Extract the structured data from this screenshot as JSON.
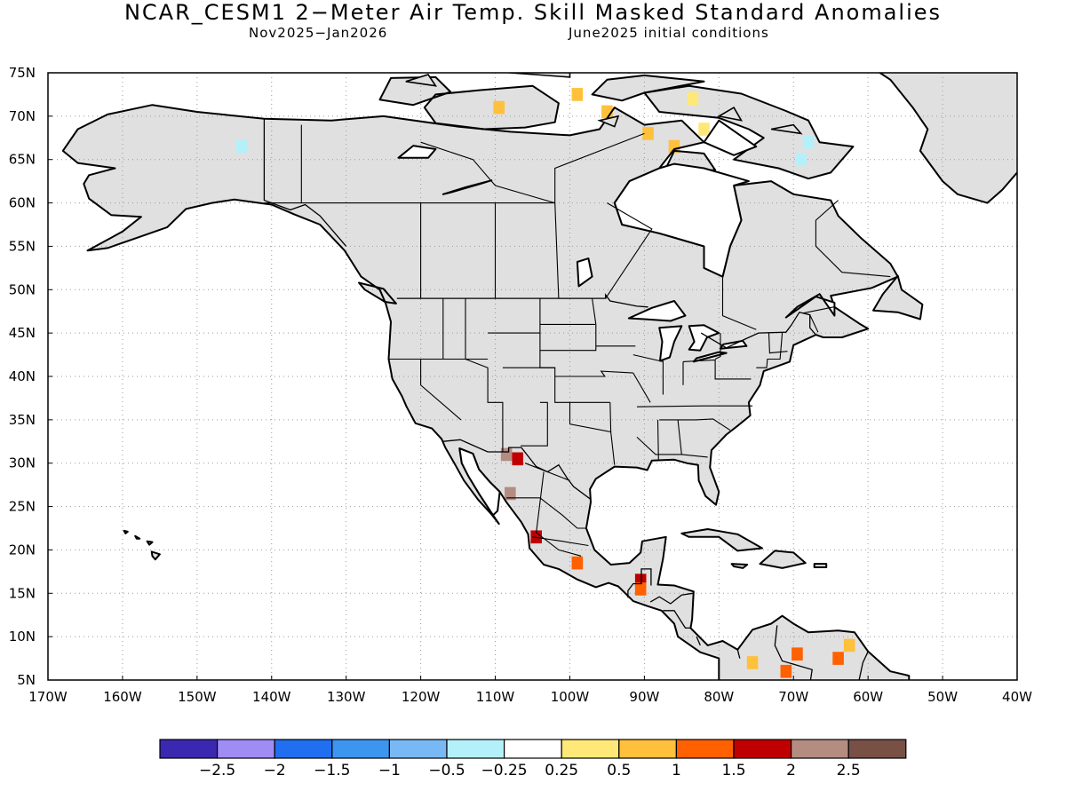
{
  "title": "NCAR_CESM1 2−Meter Air Temp. Skill Masked Standard Anomalies",
  "subtitle_left": "Nov2025−Jan2026",
  "subtitle_right": "June2025 initial conditions",
  "map": {
    "lat_labels": [
      "75N",
      "70N",
      "65N",
      "60N",
      "55N",
      "50N",
      "45N",
      "40N",
      "35N",
      "30N",
      "25N",
      "20N",
      "15N",
      "10N",
      "5N"
    ],
    "lon_labels": [
      "170W",
      "160W",
      "150W",
      "140W",
      "130W",
      "120W",
      "110W",
      "100W",
      "90W",
      "80W",
      "70W",
      "60W",
      "50W",
      "40W"
    ],
    "background_color": "#ffffff",
    "land_masked_color": "#e0e0e0",
    "coastline_color": "#000000",
    "anomaly_cells": [
      {
        "lon": -108.5,
        "lat": 31,
        "value": 2.2
      },
      {
        "lon": -107,
        "lat": 30.5,
        "value": 1.8
      },
      {
        "lon": -108,
        "lat": 26.5,
        "value": 2.2
      },
      {
        "lon": -104.5,
        "lat": 21.5,
        "value": 1.8
      },
      {
        "lon": -99,
        "lat": 18.5,
        "value": 1.3
      },
      {
        "lon": -90.5,
        "lat": 16.5,
        "value": 1.8
      },
      {
        "lon": -90.5,
        "lat": 15.5,
        "value": 1.3
      },
      {
        "lon": -75.5,
        "lat": 7,
        "value": 0.7
      },
      {
        "lon": -69.5,
        "lat": 8,
        "value": 1.3
      },
      {
        "lon": -64,
        "lat": 7.5,
        "value": 1.3
      },
      {
        "lon": -62.5,
        "lat": 9,
        "value": 0.7
      },
      {
        "lon": -71,
        "lat": 6,
        "value": 1.3
      },
      {
        "lon": -109.5,
        "lat": 71,
        "value": 0.7
      },
      {
        "lon": -99,
        "lat": 72.5,
        "value": 0.7
      },
      {
        "lon": -95,
        "lat": 70.5,
        "value": 0.7
      },
      {
        "lon": -89.5,
        "lat": 68,
        "value": 0.7
      },
      {
        "lon": -86,
        "lat": 66.5,
        "value": 0.7
      },
      {
        "lon": -82,
        "lat": 68.5,
        "value": 0.4
      },
      {
        "lon": -83.5,
        "lat": 72,
        "value": 0.4
      },
      {
        "lon": -68,
        "lat": 67,
        "value": -0.4
      },
      {
        "lon": -69,
        "lat": 65,
        "value": -0.4
      },
      {
        "lon": -144,
        "lat": 66.5,
        "value": -0.4
      }
    ]
  },
  "colorbar": {
    "colors": [
      "#3b28b0",
      "#a08cf5",
      "#1f6ff0",
      "#3c96f0",
      "#78b9f5",
      "#b4f0fa",
      "#ffffff",
      "#ffe878",
      "#ffc03c",
      "#ff6000",
      "#c00000",
      "#b48c82",
      "#785046"
    ],
    "labels": [
      "−2.5",
      "−2",
      "−1.5",
      "−1",
      "−0.5",
      "−0.25",
      "0.25",
      "0.5",
      "1",
      "1.5",
      "2",
      "2.5"
    ],
    "bounds": [
      -3,
      -2.5,
      -2,
      -1.5,
      -1,
      -0.5,
      -0.25,
      0.25,
      0.5,
      1,
      1.5,
      2,
      2.5,
      3
    ]
  }
}
